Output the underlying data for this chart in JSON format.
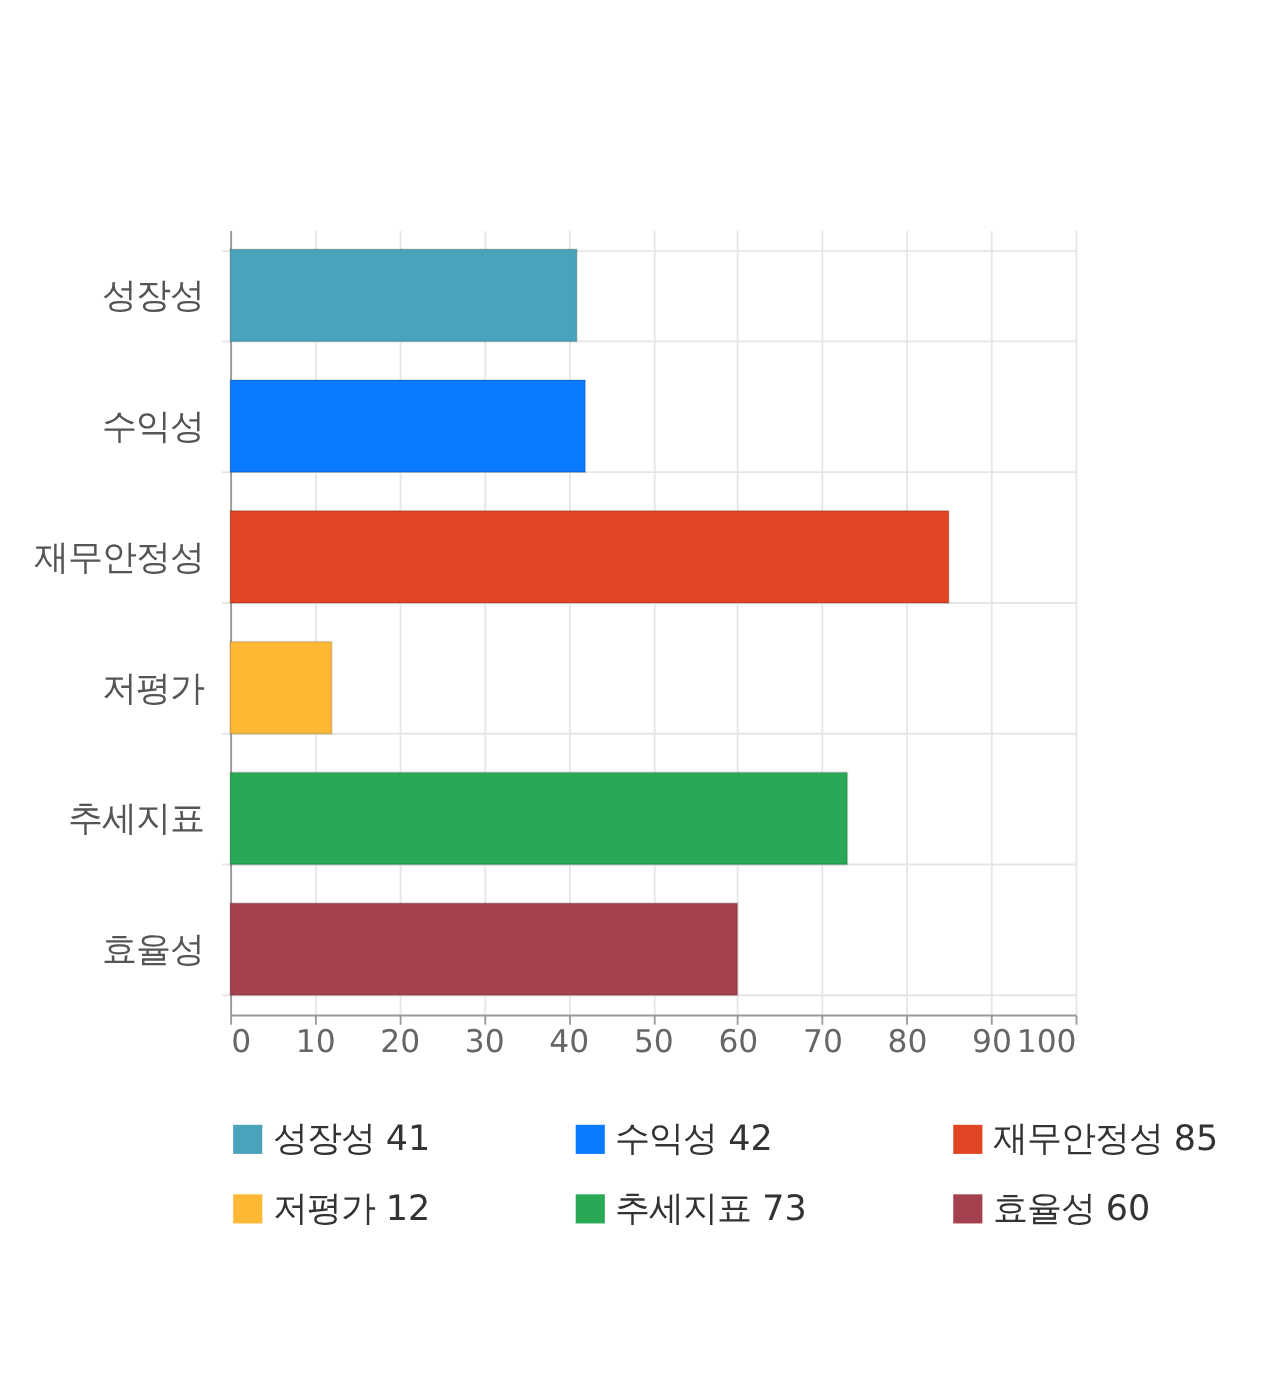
{
  "chart_data": {
    "type": "bar",
    "orientation": "horizontal",
    "categories": [
      "성장성",
      "수익성",
      "재무안정성",
      "저평가",
      "추세지표",
      "효율성"
    ],
    "series": [
      {
        "name": "성장성 41",
        "color": "#4ba3bb",
        "values": [
          41,
          null,
          null,
          null,
          null,
          null
        ]
      },
      {
        "name": "수익성 42",
        "color": "#0a7aff",
        "values": [
          null,
          42,
          null,
          null,
          null,
          null
        ]
      },
      {
        "name": "재무안정성 85",
        "color": "#e24524",
        "values": [
          null,
          null,
          85,
          null,
          null,
          null
        ]
      },
      {
        "name": "저평가 12",
        "color": "#ffb833",
        "values": [
          null,
          null,
          null,
          12,
          null,
          null
        ]
      },
      {
        "name": "추세지표 73",
        "color": "#29a856",
        "values": [
          null,
          null,
          null,
          null,
          73,
          null
        ]
      },
      {
        "name": "효율성 60",
        "color": "#a5414e",
        "values": [
          null,
          null,
          null,
          null,
          null,
          60
        ]
      }
    ],
    "xlim": [
      0,
      100
    ],
    "xticks": [
      0,
      10,
      20,
      30,
      40,
      50,
      60,
      70,
      80,
      90,
      100
    ],
    "grid": true,
    "legend": "bottom"
  }
}
